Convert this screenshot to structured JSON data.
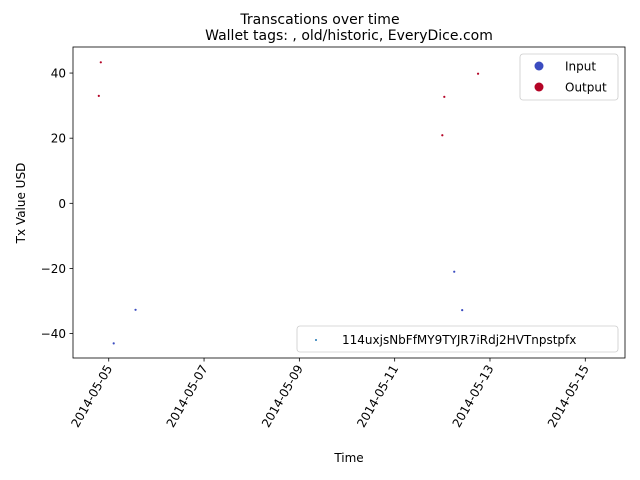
{
  "chart_data": {
    "type": "scatter",
    "title": "Transcations over time",
    "subtitle": "Wallet tags: , old/historic, EveryDice.com",
    "xlabel": "Time",
    "ylabel": "Tx Value USD",
    "xlim": [
      "2014-05-04 06:00",
      "2014-05-15 20:00"
    ],
    "ylim": [
      -47.5,
      48.0
    ],
    "x_ticks": [
      "2014-05-05",
      "2014-05-07",
      "2014-05-09",
      "2014-05-11",
      "2014-05-13",
      "2014-05-15"
    ],
    "y_ticks": [
      -40,
      -20,
      0,
      20,
      40
    ],
    "grid": false,
    "legend_hue": {
      "placement": "upper right",
      "entries": [
        {
          "label": "Input",
          "color": "#3b4cc0"
        },
        {
          "label": "Output",
          "color": "#b40426"
        }
      ]
    },
    "legend_series": {
      "placement": "lower right",
      "entries": [
        {
          "label": "114uxjsNbFfMY9TYJR7iRdj2HVTnpstpfx",
          "color": "#1f77b4"
        }
      ]
    },
    "series": [
      {
        "category": "Output",
        "color": "#b40426",
        "points": [
          {
            "x": "2014-05-04 20:00",
            "y": 43.3
          },
          {
            "x": "2014-05-04 19:00",
            "y": 33.0
          },
          {
            "x": "2014-05-12 01:00",
            "y": 32.7
          },
          {
            "x": "2014-05-12 00:00",
            "y": 20.9
          },
          {
            "x": "2014-05-12 18:00",
            "y": 39.8
          }
        ]
      },
      {
        "category": "Input",
        "color": "#3b4cc0",
        "points": [
          {
            "x": "2014-05-05 02:30",
            "y": -43.0
          },
          {
            "x": "2014-05-05 13:30",
            "y": -32.7
          },
          {
            "x": "2014-05-12 06:00",
            "y": -21.0
          },
          {
            "x": "2014-05-12 10:00",
            "y": -32.8
          }
        ]
      }
    ]
  }
}
